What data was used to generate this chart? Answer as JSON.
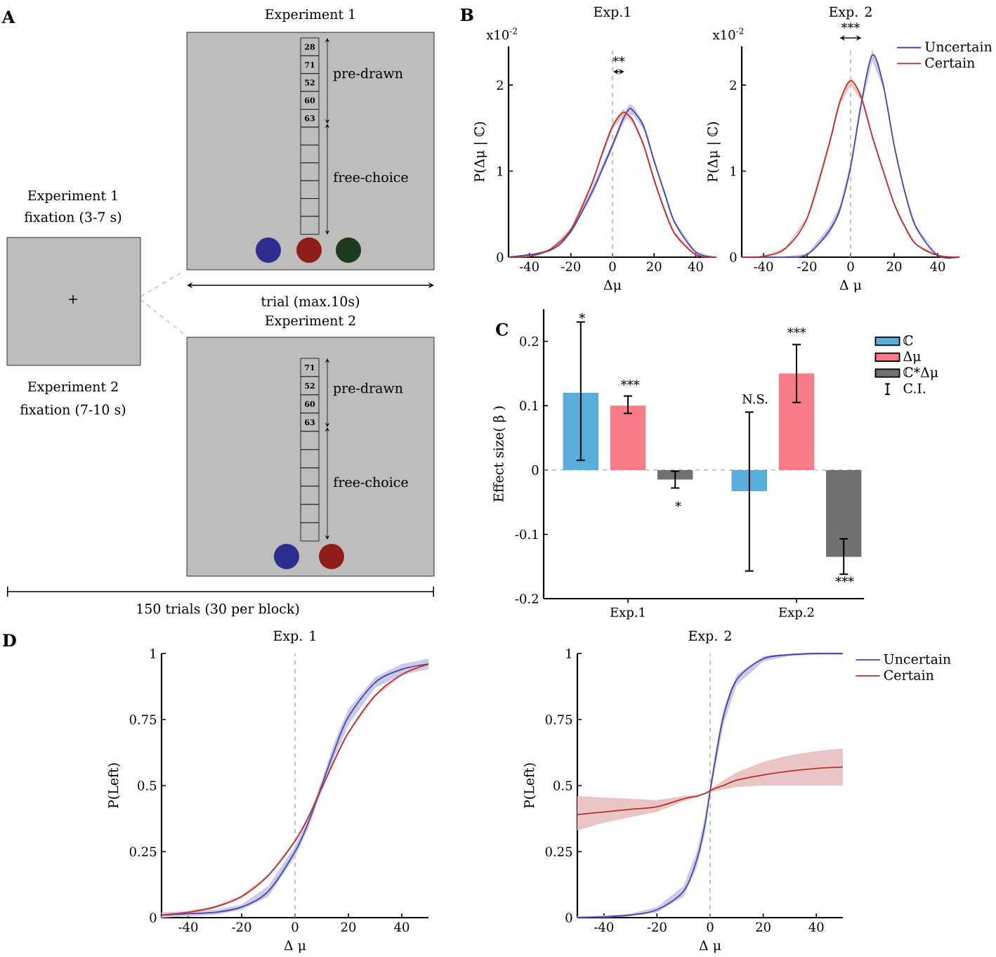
{
  "chart_data": [
    {
      "type": "other",
      "annotations": [
        "A",
        "Experiment 1",
        "28",
        "71",
        "52",
        "60",
        "63",
        "pre-drawn",
        "free-choice",
        "trial (max.10s)",
        "Experiment 2",
        "71",
        "52",
        "60",
        "63",
        "pre-drawn",
        "free-choice",
        "Experiment 1",
        "fixation (3-7 s)",
        "Experiment 2",
        "fixation (7-10 s)",
        "+",
        "150 trials (30 per block)"
      ]
    },
    {
      "type": "line",
      "title": "Exp.1",
      "xlabel": "Δμ",
      "ylabel": "P(Δμ | ℂ)",
      "xlim": [
        -50,
        50
      ],
      "ylim": [
        0,
        2.45
      ],
      "xticks": [
        -40,
        -20,
        0,
        20,
        40
      ],
      "yticks": [
        0,
        1,
        2
      ],
      "ref_lines": [
        {
          "axis": "x",
          "value": 0,
          "color": "#aaaaaa",
          "line_style": "dashed"
        }
      ],
      "annotations": [
        "B",
        "x10$^{-2}$",
        "**"
      ],
      "x": [
        -50,
        -40,
        -30,
        -20,
        -10,
        -5,
        0,
        5,
        8,
        10,
        15,
        20,
        25,
        30,
        40,
        50
      ],
      "series": [
        {
          "color": "#4646aa",
          "values": [
            0,
            null,
            0.08,
            0.3,
            0.75,
            1.02,
            1.3,
            1.6,
            1.72,
            1.7,
            1.52,
            1.12,
            0.75,
            0.4,
            0.06,
            0
          ],
          "lower": [
            0,
            0.005,
            0.07,
            0.28,
            0.7,
            null,
            1.26,
            1.55,
            1.66,
            1.65,
            1.48,
            1.09,
            0.72,
            0.38,
            0.05,
            0
          ],
          "upper": [
            0,
            0.015,
            0.09,
            0.32,
            0.8,
            null,
            1.34,
            1.65,
            1.78,
            1.76,
            1.56,
            1.15,
            0.78,
            0.42,
            0.07,
            0
          ]
        },
        {
          "color": "#b8302c",
          "values": [
            0,
            0.01,
            0.09,
            0.32,
            0.85,
            1.2,
            1.52,
            1.68,
            1.64,
            1.58,
            1.3,
            0.9,
            0.55,
            0.27,
            0.03,
            0
          ],
          "lower": [
            0,
            0.005,
            0.08,
            0.3,
            0.82,
            1.17,
            1.48,
            1.64,
            1.6,
            1.55,
            1.27,
            0.87,
            0.52,
            0.25,
            0.02,
            0
          ],
          "upper": [
            0,
            0.015,
            0.1,
            0.34,
            0.88,
            1.23,
            1.56,
            1.72,
            1.68,
            1.61,
            1.33,
            0.93,
            0.58,
            0.29,
            0.04,
            0
          ]
        }
      ]
    },
    {
      "type": "line",
      "title": "Exp. 2",
      "xlabel": "Δ μ",
      "ylabel": "P(Δμ | ℂ)",
      "xlim": [
        -50,
        50
      ],
      "ylim": [
        0,
        2.45
      ],
      "xticks": [
        -40,
        -20,
        0,
        20,
        40
      ],
      "yticks": [
        0,
        1,
        2
      ],
      "legend": "top right",
      "ref_lines": [
        {
          "axis": "x",
          "value": 0,
          "color": "#aaaaaa",
          "line_style": "dashed"
        }
      ],
      "annotations": [
        "x10$^{-2}$",
        "***"
      ],
      "x": [
        -50,
        -40,
        -30,
        -20,
        -10,
        -5,
        0,
        5,
        10,
        15,
        20,
        25,
        30,
        40,
        50
      ],
      "series": [
        {
          "name": "Uncertain",
          "color": "#4646aa",
          "values": [
            0,
            0,
            0,
            0.03,
            0.3,
            0.55,
            1.05,
            1.8,
            2.35,
            2.0,
            1.3,
            0.75,
            0.35,
            0.02,
            0
          ],
          "lower": [
            0,
            0,
            0,
            0.02,
            0.25,
            0.5,
            1.0,
            1.75,
            2.28,
            1.96,
            1.27,
            0.73,
            0.33,
            0.015,
            0
          ],
          "upper": [
            0,
            0,
            0.01,
            0.04,
            0.35,
            0.6,
            1.1,
            1.85,
            2.42,
            2.04,
            1.33,
            0.77,
            0.37,
            0.025,
            0
          ]
        },
        {
          "name": "Certain",
          "color": "#b8302c",
          "values": [
            0,
            0.01,
            0.1,
            0.45,
            1.3,
            1.8,
            2.05,
            1.85,
            1.4,
            1.0,
            0.62,
            0.35,
            0.15,
            0.02,
            0
          ],
          "lower": [
            0,
            0.005,
            0.09,
            0.43,
            1.27,
            1.76,
            2.0,
            1.81,
            1.37,
            0.98,
            0.6,
            0.33,
            0.14,
            0.015,
            0
          ],
          "upper": [
            0,
            0.015,
            0.11,
            0.47,
            1.33,
            1.84,
            2.1,
            1.89,
            1.43,
            1.02,
            0.64,
            0.37,
            0.16,
            0.025,
            0
          ]
        }
      ]
    },
    {
      "type": "bar",
      "ylabel": "Effect size( β )",
      "categories": [
        "Exp.1",
        "Exp.2"
      ],
      "ylim": [
        -0.2,
        0.25
      ],
      "yticks": [
        -0.2,
        -0.1,
        0,
        0.1,
        0.2
      ],
      "legend": "right",
      "ref_lines": [
        {
          "axis": "y",
          "value": 0,
          "color": "#aaaaaa",
          "line_style": "dashed"
        }
      ],
      "series": [
        {
          "name": "ℂ",
          "color": "#5aaedc",
          "values": [
            0.12,
            -0.033
          ],
          "errors": [
            [
              0.015,
              0.23
            ],
            [
              -0.157,
              0.09
            ]
          ]
        },
        {
          "name": "Δμ",
          "color": "#f87c87",
          "values": [
            0.1,
            0.15
          ],
          "errors": [
            [
              0.088,
              0.115
            ],
            [
              0.105,
              0.195
            ]
          ]
        },
        {
          "name": "ℂ*Δμ",
          "color": "#707070",
          "values": [
            -0.015,
            -0.135
          ],
          "errors": [
            [
              -0.028,
              -0.002
            ],
            [
              -0.162,
              -0.107
            ]
          ]
        }
      ],
      "annotations": [
        "C",
        "C.I.",
        "*",
        "***",
        "*",
        "N.S.",
        "***",
        "***"
      ]
    },
    {
      "type": "line",
      "title": "Exp. 1",
      "xlabel": "Δ μ",
      "ylabel": "P(Left)",
      "xlim": [
        -50,
        50
      ],
      "ylim": [
        0,
        1
      ],
      "xticks": [
        -40,
        -20,
        0,
        20,
        40
      ],
      "yticks": [
        0,
        0.25,
        0.5,
        0.75,
        1
      ],
      "ref_lines": [
        {
          "axis": "x",
          "value": 0,
          "color": "#aaaaaa",
          "line_style": "dashed"
        }
      ],
      "annotations": [
        "D"
      ],
      "x": [
        -50,
        -40,
        -30,
        -20,
        -10,
        0,
        5,
        10,
        15,
        20,
        30,
        40,
        50
      ],
      "series": [
        {
          "color": "#4646aa",
          "values": [
            0.01,
            0.015,
            0.02,
            0.04,
            0.1,
            0.25,
            0.36,
            0.5,
            0.64,
            0.76,
            0.89,
            0.94,
            0.96
          ],
          "lower": [
            0,
            0.005,
            0.01,
            0.03,
            0.08,
            0.23,
            0.34,
            0.48,
            0.61,
            0.73,
            0.87,
            0.92,
            0.94
          ],
          "upper": [
            0.02,
            0.025,
            0.03,
            0.05,
            0.12,
            0.27,
            0.38,
            0.52,
            0.67,
            0.79,
            0.91,
            0.96,
            0.98
          ]
        },
        {
          "color": "#b8302c",
          "values": [
            0.01,
            0.02,
            0.04,
            0.08,
            0.16,
            0.29,
            0.38,
            0.49,
            0.6,
            0.7,
            0.84,
            0.92,
            0.96
          ],
          "lower": [
            0.005,
            0.015,
            0.035,
            0.075,
            0.155,
            0.285,
            0.375,
            null,
            0.595,
            0.695,
            0.835,
            0.915,
            0.955
          ],
          "upper": [
            0.015,
            0.025,
            0.045,
            0.085,
            0.165,
            0.295,
            0.385,
            null,
            0.605,
            0.705,
            0.845,
            0.925,
            0.965
          ]
        }
      ]
    },
    {
      "type": "line",
      "title": "Exp. 2",
      "xlabel": "Δ μ",
      "ylabel": "P(Left)",
      "xlim": [
        -50,
        50
      ],
      "ylim": [
        0,
        1
      ],
      "xticks": [
        -40,
        -20,
        0,
        20,
        40
      ],
      "yticks": [
        0,
        0.25,
        0.5,
        0.75,
        1
      ],
      "legend": "top right",
      "ref_lines": [
        {
          "axis": "x",
          "value": 0,
          "color": "#aaaaaa",
          "line_style": "dashed"
        }
      ],
      "x": [
        -50,
        -40,
        -30,
        -20,
        -10,
        -5,
        -2,
        0,
        2,
        5,
        10,
        20,
        30,
        40,
        50
      ],
      "series": [
        {
          "name": "Uncertain",
          "color": "#4646aa",
          "values": [
            0,
            0.003,
            0.01,
            0.03,
            0.1,
            0.22,
            0.35,
            0.48,
            0.6,
            0.76,
            0.9,
            0.98,
            0.995,
            1,
            1
          ],
          "lower": [
            0,
            0,
            0.005,
            0.02,
            0.08,
            0.19,
            0.32,
            0.46,
            0.57,
            0.73,
            0.88,
            0.97,
            0.99,
            0.995,
            0.995
          ],
          "upper": [
            0.005,
            0.008,
            0.015,
            0.04,
            0.12,
            0.25,
            0.38,
            0.5,
            0.63,
            0.79,
            0.92,
            0.99,
            1,
            1,
            1
          ]
        },
        {
          "name": "Certain",
          "color": "#b8302c",
          "values": [
            0.39,
            0.4,
            0.41,
            0.42,
            0.45,
            0.46,
            0.47,
            0.48,
            0.49,
            0.5,
            0.52,
            0.54,
            0.555,
            0.565,
            0.57
          ],
          "lower": [
            0.33,
            0.36,
            0.38,
            0.4,
            0.44,
            0.455,
            0.467,
            0.475,
            0.48,
            0.485,
            0.495,
            0.5,
            0.5,
            0.5,
            0.5
          ],
          "upper": [
            0.46,
            0.455,
            0.45,
            0.445,
            0.46,
            0.465,
            0.473,
            0.485,
            0.5,
            0.52,
            0.55,
            0.59,
            0.615,
            0.63,
            0.64
          ]
        }
      ]
    }
  ]
}
